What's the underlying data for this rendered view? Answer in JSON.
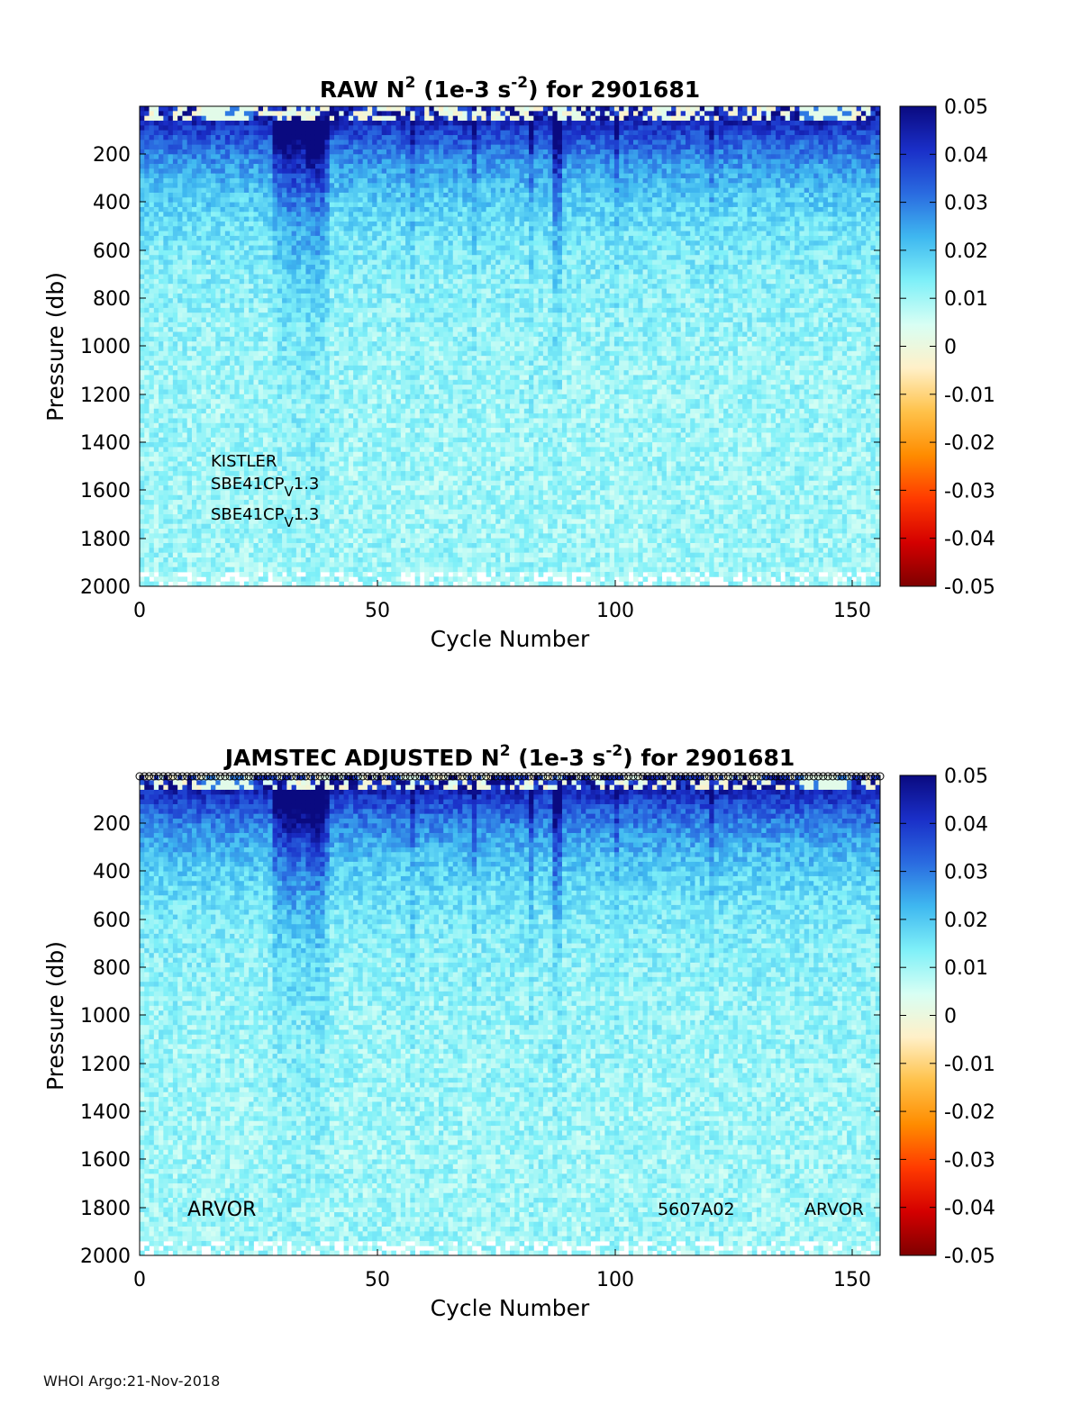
{
  "footer": "WHOI Argo:21-Nov-2018",
  "colorbar": {
    "ticks": [
      "0.05",
      "0.04",
      "0.03",
      "0.02",
      "0.01",
      "0",
      "-0.01",
      "-0.02",
      "-0.03",
      "-0.04",
      "-0.05"
    ],
    "colors": [
      "#7f0000",
      "#d40000",
      "#ff3a00",
      "#ff8c00",
      "#ffc24a",
      "#fff0c8",
      "#d8fff4",
      "#7ff0f8",
      "#3fb8f0",
      "#2a6be0",
      "#1a2fc8",
      "#0a0a80"
    ]
  },
  "chart_data": [
    {
      "type": "heatmap",
      "title": {
        "prefix": "RAW N",
        "sup1": "2",
        "mid": " (1e-3 s",
        "sup2": "-2",
        "suffix": ") for 2901681"
      },
      "xlabel": "Cycle Number",
      "ylabel": "Pressure (db)",
      "xlim": [
        0,
        156
      ],
      "ylim": [
        0,
        2000
      ],
      "xticks": [
        "0",
        "50",
        "100",
        "150"
      ],
      "yticks": [
        "200",
        "400",
        "600",
        "800",
        "1000",
        "1200",
        "1400",
        "1600",
        "1800",
        "2000"
      ],
      "clim": [
        -0.05,
        0.05
      ],
      "annotations": {
        "line1": "KISTLER",
        "line2_main": "SBE41CP",
        "line2_sub": "V",
        "line2_tail": "1.3",
        "line3_main": "SBE41CP",
        "line3_sub": "V",
        "line3_tail": "1.3"
      }
    },
    {
      "type": "heatmap",
      "title": {
        "prefix": "JAMSTEC  ADJUSTED N",
        "sup1": "2",
        "mid": " (1e-3 s",
        "sup2": "-2",
        "suffix": ") for 2901681"
      },
      "xlabel": "Cycle Number",
      "ylabel": "Pressure (db)",
      "xlim": [
        0,
        156
      ],
      "ylim": [
        0,
        2000
      ],
      "xticks": [
        "0",
        "50",
        "100",
        "150"
      ],
      "yticks": [
        "200",
        "400",
        "600",
        "800",
        "1000",
        "1200",
        "1400",
        "1600",
        "1800",
        "2000"
      ],
      "clim": [
        -0.05,
        0.05
      ],
      "annotations": {
        "left": "ARVOR",
        "mid": "5607A02",
        "right": "ARVOR"
      }
    }
  ]
}
